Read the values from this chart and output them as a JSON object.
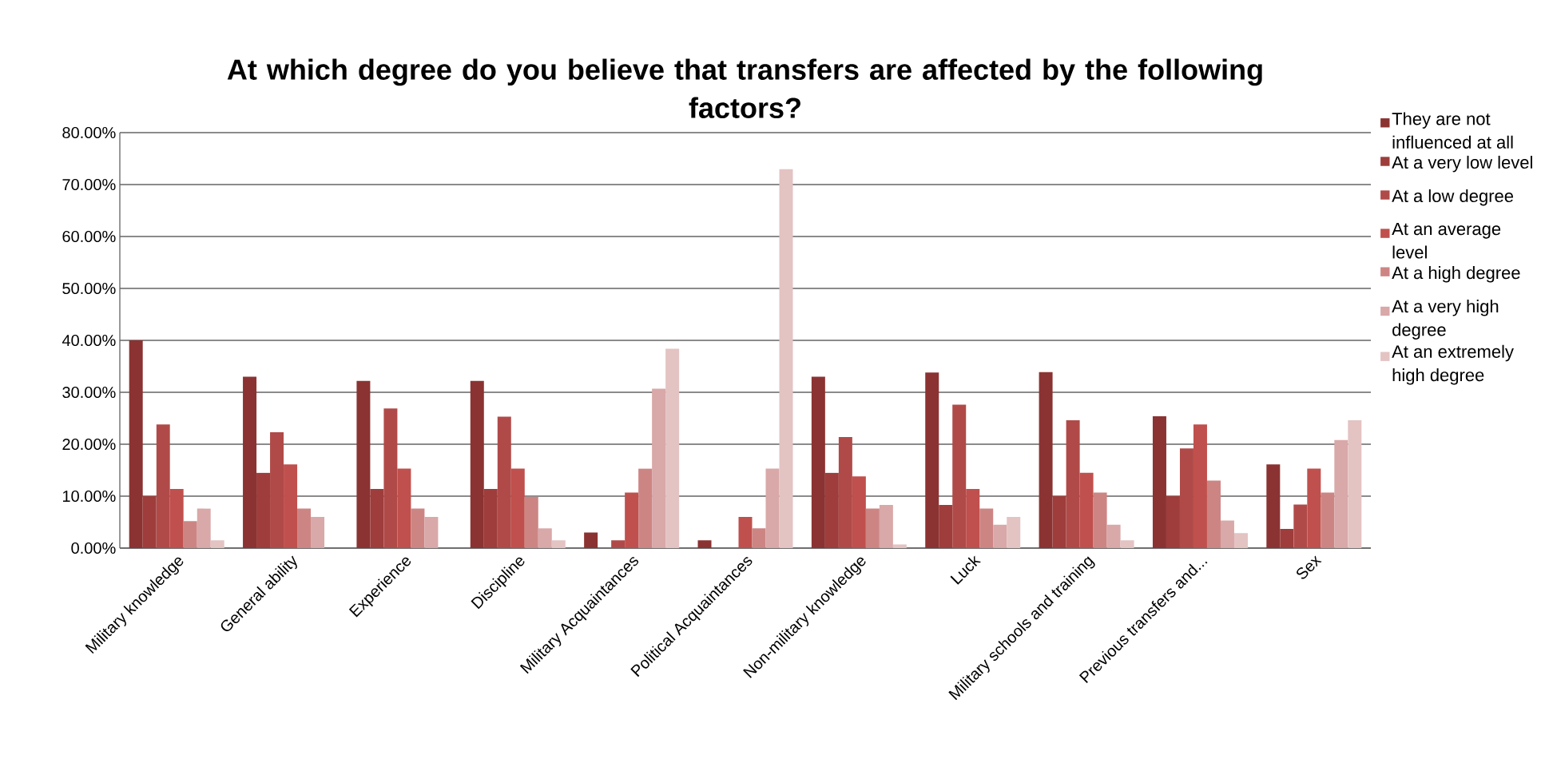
{
  "chart_data": {
    "type": "bar",
    "title": "At which degree do you believe that transfers are affected by the following factors?",
    "categories": [
      "Military knowledge",
      "General ability",
      "Experience",
      "Discipline",
      "Military Acquaintances",
      "Political Acquaintances",
      "Non-military knowledge",
      "Luck",
      "Military schools and training",
      "Previous transfers and...",
      "Sex"
    ],
    "series": [
      {
        "name": "They are not influenced at all",
        "color": "#8b3332",
        "values": [
          40.0,
          33.0,
          32.2,
          32.2,
          3.0,
          1.5,
          33.0,
          33.8,
          33.9,
          25.4,
          16.1
        ]
      },
      {
        "name": "At a very low level",
        "color": "#9e3d3b",
        "values": [
          10.0,
          14.5,
          11.4,
          11.4,
          0,
          0,
          14.5,
          8.3,
          10.0,
          10.0,
          3.7
        ]
      },
      {
        "name": "At a low degree",
        "color": "#b04a48",
        "values": [
          23.8,
          22.3,
          26.9,
          25.3,
          1.5,
          0,
          21.4,
          27.6,
          24.6,
          19.2,
          8.4
        ]
      },
      {
        "name": "At an average level",
        "color": "#c0504d",
        "values": [
          11.4,
          16.1,
          15.3,
          15.3,
          10.7,
          6.0,
          13.8,
          11.4,
          14.5,
          23.8,
          15.3
        ]
      },
      {
        "name": "At a high degree",
        "color": "#cd8584",
        "values": [
          5.2,
          7.6,
          7.6,
          9.9,
          15.3,
          3.8,
          7.6,
          7.6,
          10.7,
          13.0,
          10.7
        ]
      },
      {
        "name": "At a very high degree",
        "color": "#d9a8a8",
        "values": [
          7.6,
          6.0,
          6.0,
          3.8,
          30.7,
          15.3,
          8.3,
          4.5,
          4.5,
          5.3,
          20.8
        ]
      },
      {
        "name": "At an extremely high degree",
        "color": "#e4c3c3",
        "values": [
          1.5,
          0,
          0,
          1.5,
          38.4,
          73.0,
          0.7,
          6.0,
          1.5,
          2.9,
          24.6
        ]
      }
    ],
    "ylim": [
      0,
      80
    ],
    "yticks": [
      {
        "value": 0,
        "label": "0.00%"
      },
      {
        "value": 10,
        "label": "10.00%"
      },
      {
        "value": 20,
        "label": "20.00%"
      },
      {
        "value": 30,
        "label": "30.00%"
      },
      {
        "value": 40,
        "label": "40.00%"
      },
      {
        "value": 50,
        "label": "50.00%"
      },
      {
        "value": 60,
        "label": "60.00%"
      },
      {
        "value": 70,
        "label": "70.00%"
      },
      {
        "value": 80,
        "label": "80.00%"
      }
    ],
    "grid": "y",
    "legend": "right"
  }
}
